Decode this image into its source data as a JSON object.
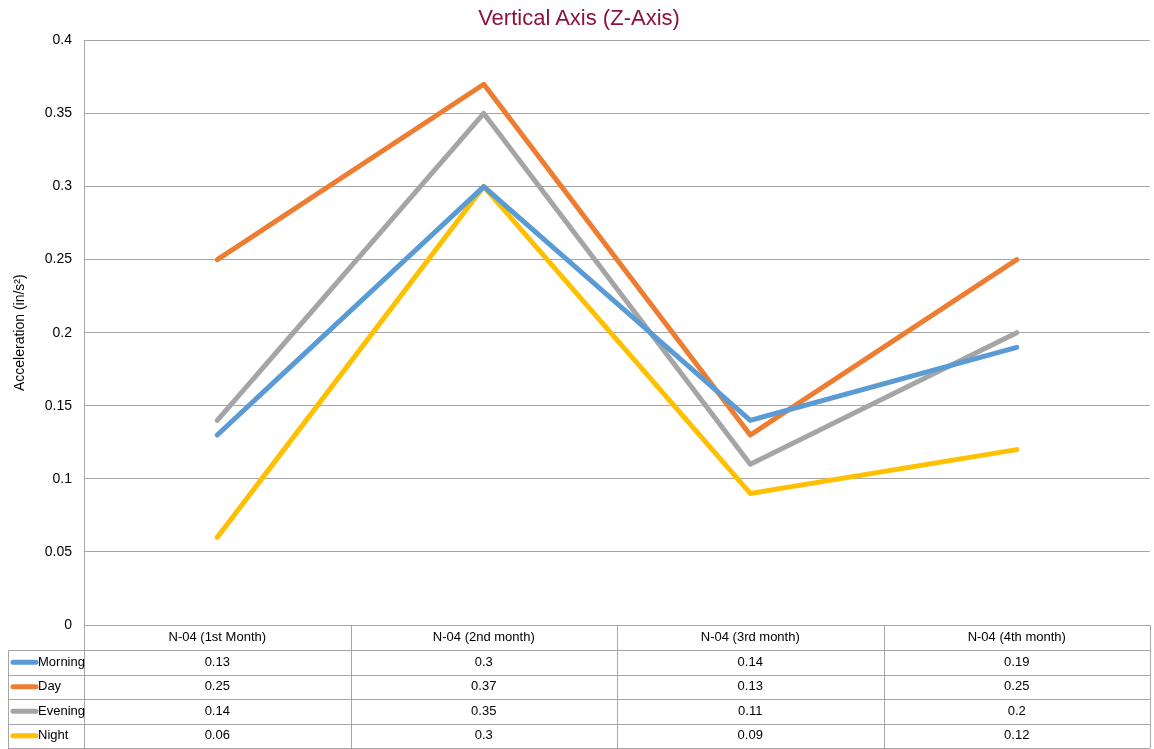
{
  "chart_data": {
    "type": "line",
    "title": "Vertical Axis (Z-Axis)",
    "ylabel": "Acceleration (in/s²)",
    "categories": [
      "N-04 (1st Month)",
      "N-04 (2nd month)",
      "N-04 (3rd month)",
      "N-04 (4th month)"
    ],
    "series": [
      {
        "name": "Morning",
        "color": "#5b9bd5",
        "values": [
          0.13,
          0.3,
          0.14,
          0.19
        ]
      },
      {
        "name": "Day",
        "color": "#ed7d31",
        "values": [
          0.25,
          0.37,
          0.13,
          0.25
        ]
      },
      {
        "name": "Evening",
        "color": "#a5a5a5",
        "values": [
          0.14,
          0.35,
          0.11,
          0.2
        ]
      },
      {
        "name": "Night",
        "color": "#ffc000",
        "values": [
          0.06,
          0.3,
          0.09,
          0.12
        ]
      }
    ],
    "ylim": [
      0,
      0.4
    ],
    "yticks": [
      0,
      0.05,
      0.1,
      0.15,
      0.2,
      0.25,
      0.3,
      0.35,
      0.4
    ],
    "grid": "y",
    "legend": "bottom",
    "data_labels": true,
    "marker": "none",
    "line_style": "solid"
  }
}
